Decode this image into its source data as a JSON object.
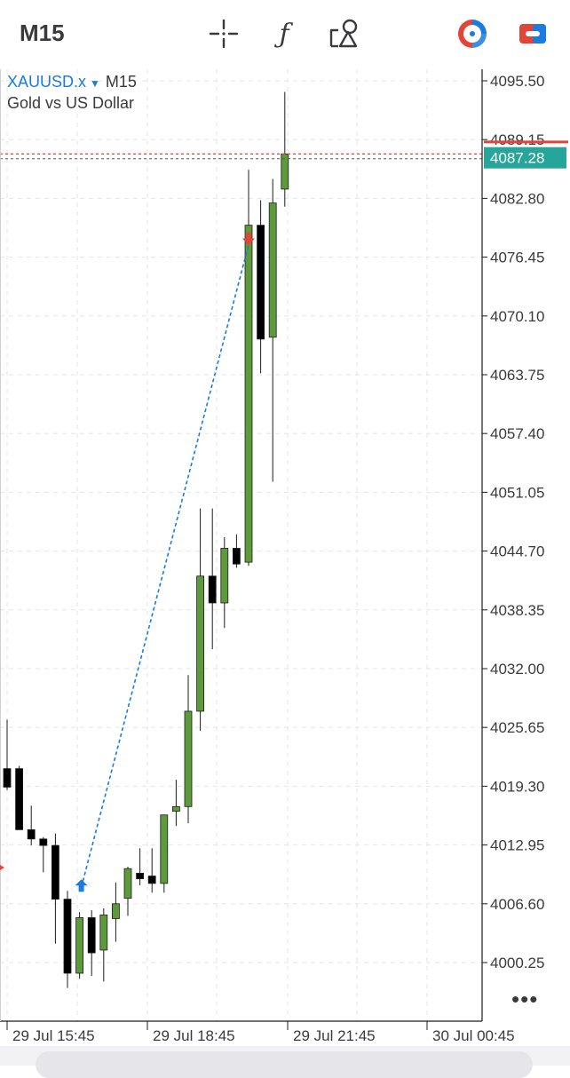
{
  "toolbar": {
    "timeframe": "M15",
    "icons": [
      "crosshair-icon",
      "function-icon",
      "objects-icon",
      "trade-toggle-icon",
      "window-icon"
    ]
  },
  "symbol": {
    "name": "XAUUSD.x",
    "timeframe": "M15",
    "description": "Gold vs US Dollar"
  },
  "price_labels": [
    "4095.50",
    "4089.15",
    "4082.80",
    "4076.45",
    "4070.10",
    "4063.75",
    "4057.40",
    "4051.05",
    "4044.70",
    "4038.35",
    "4032.00",
    "4025.65",
    "4019.30",
    "4012.95",
    "4006.60",
    "4000.25"
  ],
  "current_price": "4087.28",
  "time_labels": [
    "29 Jul 15:45",
    "29 Jul 18:45",
    "29 Jul 21:45",
    "30 Jul 00:45"
  ],
  "more_label": "•••",
  "colors": {
    "bull": "#5d9a3b",
    "bear": "#000000",
    "price_tag": "#26a69a",
    "ask_line": "#e0443a",
    "trade_line": "#1a7be0",
    "grid": "#e6e6e6"
  },
  "chart_data": {
    "type": "candlestick",
    "ylim": [
      3997.0,
      4097.5
    ],
    "y_ticks": [
      4095.5,
      4089.15,
      4082.8,
      4076.45,
      4070.1,
      4063.75,
      4057.4,
      4051.05,
      4044.7,
      4038.35,
      4032.0,
      4025.65,
      4019.3,
      4012.95,
      4006.6,
      4000.25
    ],
    "x_labels": [
      "29 Jul 15:45",
      "29 Jul 18:45",
      "29 Jul 21:45",
      "30 Jul 00:45"
    ],
    "candles": [
      {
        "o": 4021.2,
        "h": 4026.5,
        "l": 4018.9,
        "c": 4019.2
      },
      {
        "o": 4021.2,
        "h": 4021.5,
        "l": 4014.6,
        "c": 4014.6
      },
      {
        "o": 4014.6,
        "h": 4017.2,
        "l": 4012.9,
        "c": 4013.6
      },
      {
        "o": 4013.6,
        "h": 4013.8,
        "l": 4010.0,
        "c": 4012.9
      },
      {
        "o": 4012.9,
        "h": 4014.2,
        "l": 4002.3,
        "c": 4007.1
      },
      {
        "o": 4007.1,
        "h": 4008.0,
        "l": 3997.5,
        "c": 3999.1
      },
      {
        "o": 3999.1,
        "h": 4005.7,
        "l": 3998.5,
        "c": 4005.1
      },
      {
        "o": 4005.1,
        "h": 4005.9,
        "l": 3998.8,
        "c": 4001.3
      },
      {
        "o": 4001.6,
        "h": 4006.1,
        "l": 3998.2,
        "c": 4005.4
      },
      {
        "o": 4005.0,
        "h": 4008.9,
        "l": 4002.5,
        "c": 4006.6
      },
      {
        "o": 4007.2,
        "h": 4010.6,
        "l": 4005.3,
        "c": 4010.4
      },
      {
        "o": 4009.9,
        "h": 4012.6,
        "l": 4008.6,
        "c": 4009.3
      },
      {
        "o": 4009.6,
        "h": 4012.6,
        "l": 4007.8,
        "c": 4008.8
      },
      {
        "o": 4008.8,
        "h": 4016.2,
        "l": 4007.8,
        "c": 4016.2
      },
      {
        "o": 4016.6,
        "h": 4020.0,
        "l": 4015.0,
        "c": 4017.1
      },
      {
        "o": 4017.1,
        "h": 4031.3,
        "l": 4015.3,
        "c": 4027.4
      },
      {
        "o": 4027.4,
        "h": 4049.3,
        "l": 4025.3,
        "c": 4042.0
      },
      {
        "o": 4042.0,
        "h": 4049.3,
        "l": 4034.1,
        "c": 4039.1
      },
      {
        "o": 4039.1,
        "h": 4046.2,
        "l": 4036.4,
        "c": 4045.0
      },
      {
        "o": 4045.0,
        "h": 4046.5,
        "l": 4042.9,
        "c": 4043.3
      },
      {
        "o": 4043.5,
        "h": 4085.9,
        "l": 4043.1,
        "c": 4079.9
      },
      {
        "o": 4079.9,
        "h": 4082.6,
        "l": 4063.9,
        "c": 4067.6
      },
      {
        "o": 4067.8,
        "h": 4084.9,
        "l": 4052.2,
        "c": 4082.3
      },
      {
        "o": 4083.8,
        "h": 4094.3,
        "l": 4081.9,
        "c": 4087.6
      }
    ],
    "trade": {
      "buy_price": 4008.0,
      "sell_price": 4077.8,
      "buy_index": 6,
      "sell_index": 20
    },
    "current_price": 4087.28,
    "ask_price": 4087.6
  }
}
